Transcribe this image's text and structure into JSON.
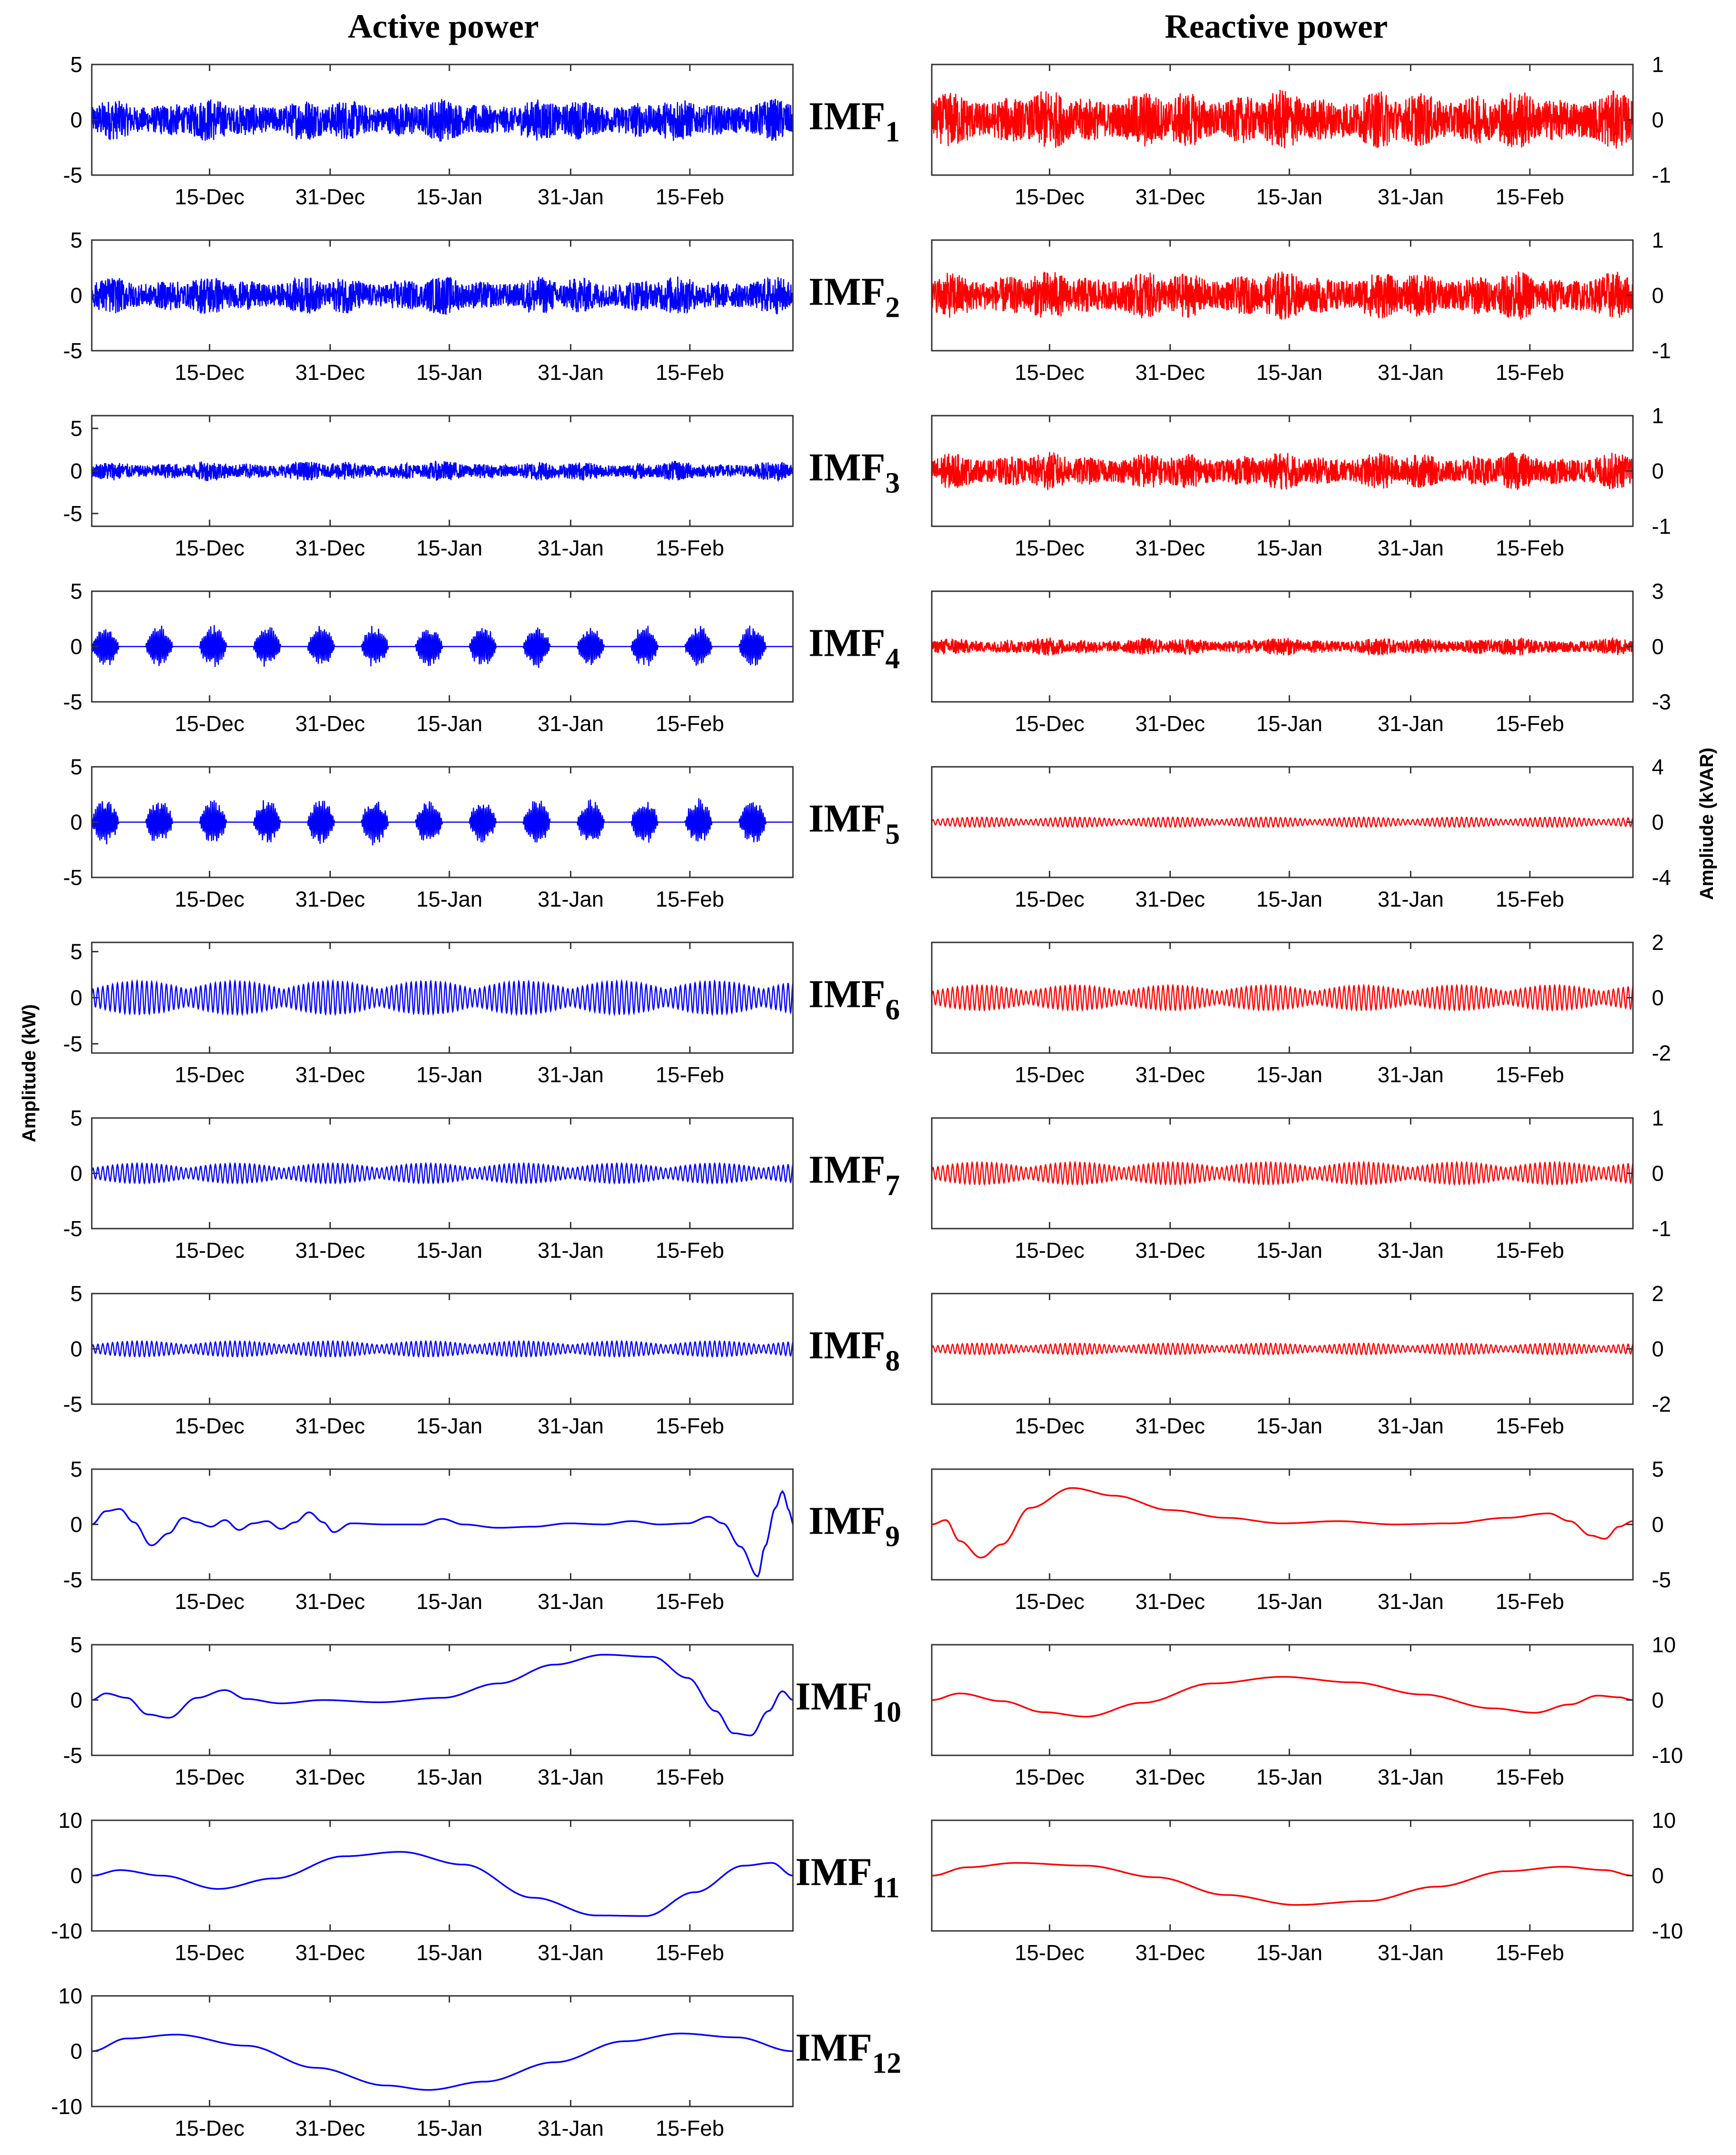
{
  "titles": {
    "left": "Active power",
    "right": "Reactive power"
  },
  "axis_labels": {
    "left": "Amplitude (kW)",
    "right": "Ampliude (kVAR)"
  },
  "colors": {
    "active": "#0000ff",
    "reactive": "#ff0000"
  },
  "chart_data": [
    {
      "type": "line",
      "panel": "IMF1",
      "column": "left",
      "title": "Active power",
      "series_name": "Active power",
      "xlabel": "",
      "ylabel": "Amplitude (kW)",
      "categories": [
        "15-Dec",
        "31-Dec",
        "15-Jan",
        "31-Jan",
        "15-Feb"
      ],
      "yticks": [
        "5",
        "0",
        "-5"
      ],
      "ylim": [
        -5,
        5
      ],
      "x_range": [
        "Dec 1",
        "Mar 2"
      ],
      "waveform": {
        "kind": "noise",
        "amplitude": 2.0
      }
    },
    {
      "type": "line",
      "panel": "IMF1",
      "column": "right",
      "title": "Reactive power",
      "series_name": "Reactive power",
      "xlabel": "",
      "ylabel": "Ampliude (kVAR)",
      "categories": [
        "15-Dec",
        "31-Dec",
        "15-Jan",
        "31-Jan",
        "15-Feb"
      ],
      "yticks": [
        "1",
        "0",
        "-1"
      ],
      "ylim": [
        -1,
        1
      ],
      "x_range": [
        "Dec 1",
        "Mar 2"
      ],
      "waveform": {
        "kind": "noise",
        "amplitude": 0.55
      }
    },
    {
      "type": "line",
      "panel": "IMF2",
      "column": "left",
      "series_name": "Active power",
      "categories": [
        "15-Dec",
        "31-Dec",
        "15-Jan",
        "31-Jan",
        "15-Feb"
      ],
      "yticks": [
        "5",
        "0",
        "-5"
      ],
      "ylim": [
        -5,
        5
      ],
      "waveform": {
        "kind": "noise",
        "amplitude": 1.8
      }
    },
    {
      "type": "line",
      "panel": "IMF2",
      "column": "right",
      "series_name": "Reactive power",
      "categories": [
        "15-Dec",
        "31-Dec",
        "15-Jan",
        "31-Jan",
        "15-Feb"
      ],
      "yticks": [
        "1",
        "0",
        "-1"
      ],
      "ylim": [
        -1,
        1
      ],
      "waveform": {
        "kind": "noise",
        "amplitude": 0.45
      }
    },
    {
      "type": "line",
      "panel": "IMF3",
      "column": "left",
      "series_name": "Active power",
      "categories": [
        "15-Dec",
        "31-Dec",
        "15-Jan",
        "31-Jan",
        "15-Feb"
      ],
      "yticks": [
        "5",
        "0",
        "-5"
      ],
      "ylim": [
        -6.5,
        6.5
      ],
      "waveform": {
        "kind": "noise",
        "amplitude": 1.2
      }
    },
    {
      "type": "line",
      "panel": "IMF3",
      "column": "right",
      "series_name": "Reactive power",
      "categories": [
        "15-Dec",
        "31-Dec",
        "15-Jan",
        "31-Jan",
        "15-Feb"
      ],
      "yticks": [
        "1",
        "0",
        "-1"
      ],
      "ylim": [
        -1,
        1
      ],
      "waveform": {
        "kind": "noise",
        "amplitude": 0.35
      }
    },
    {
      "type": "line",
      "panel": "IMF4",
      "column": "left",
      "series_name": "Active power",
      "categories": [
        "15-Dec",
        "31-Dec",
        "15-Jan",
        "31-Jan",
        "15-Feb"
      ],
      "yticks": [
        "5",
        "0",
        "-5"
      ],
      "ylim": [
        -5,
        5
      ],
      "waveform": {
        "kind": "bursts",
        "amplitude": 2.0
      }
    },
    {
      "type": "line",
      "panel": "IMF4",
      "column": "right",
      "series_name": "Reactive power",
      "categories": [
        "15-Dec",
        "31-Dec",
        "15-Jan",
        "31-Jan",
        "15-Feb"
      ],
      "yticks": [
        "3",
        "0",
        "-3"
      ],
      "ylim": [
        -3,
        3
      ],
      "waveform": {
        "kind": "noise",
        "amplitude": 0.5
      }
    },
    {
      "type": "line",
      "panel": "IMF5",
      "column": "left",
      "series_name": "Active power",
      "categories": [
        "15-Dec",
        "31-Dec",
        "15-Jan",
        "31-Jan",
        "15-Feb"
      ],
      "yticks": [
        "5",
        "0",
        "-5"
      ],
      "ylim": [
        -5,
        5
      ],
      "waveform": {
        "kind": "bursts",
        "amplitude": 2.2
      }
    },
    {
      "type": "line",
      "panel": "IMF5",
      "column": "right",
      "series_name": "Reactive power",
      "categories": [
        "15-Dec",
        "31-Dec",
        "15-Jan",
        "31-Jan",
        "15-Feb"
      ],
      "yticks": [
        "4",
        "0",
        "-4"
      ],
      "ylim": [
        -4,
        4
      ],
      "waveform": {
        "kind": "osc",
        "amplitude": 0.35
      }
    },
    {
      "type": "line",
      "panel": "IMF6",
      "column": "left",
      "series_name": "Active power",
      "categories": [
        "15-Dec",
        "31-Dec",
        "15-Jan",
        "31-Jan",
        "15-Feb"
      ],
      "yticks": [
        "5",
        "0",
        "-5"
      ],
      "ylim": [
        -6,
        6
      ],
      "waveform": {
        "kind": "osc",
        "amplitude": 1.8
      }
    },
    {
      "type": "line",
      "panel": "IMF6",
      "column": "right",
      "series_name": "Reactive power",
      "categories": [
        "15-Dec",
        "31-Dec",
        "15-Jan",
        "31-Jan",
        "15-Feb"
      ],
      "yticks": [
        "2",
        "0",
        "-2"
      ],
      "ylim": [
        -2,
        2
      ],
      "waveform": {
        "kind": "osc",
        "amplitude": 0.45
      }
    },
    {
      "type": "line",
      "panel": "IMF7",
      "column": "left",
      "series_name": "Active power",
      "categories": [
        "15-Dec",
        "31-Dec",
        "15-Jan",
        "31-Jan",
        "15-Feb"
      ],
      "yticks": [
        "5",
        "0",
        "-5"
      ],
      "ylim": [
        -5,
        5
      ],
      "waveform": {
        "kind": "osc",
        "amplitude": 0.9
      }
    },
    {
      "type": "line",
      "panel": "IMF7",
      "column": "right",
      "series_name": "Reactive power",
      "categories": [
        "15-Dec",
        "31-Dec",
        "15-Jan",
        "31-Jan",
        "15-Feb"
      ],
      "yticks": [
        "1",
        "0",
        "-1"
      ],
      "ylim": [
        -1,
        1
      ],
      "waveform": {
        "kind": "osc",
        "amplitude": 0.2
      }
    },
    {
      "type": "line",
      "panel": "IMF8",
      "column": "left",
      "series_name": "Active power",
      "categories": [
        "15-Dec",
        "31-Dec",
        "15-Jan",
        "31-Jan",
        "15-Feb"
      ],
      "yticks": [
        "5",
        "0",
        "-5"
      ],
      "ylim": [
        -5,
        5
      ],
      "waveform": {
        "kind": "osc",
        "amplitude": 0.7
      }
    },
    {
      "type": "line",
      "panel": "IMF8",
      "column": "right",
      "series_name": "Reactive power",
      "categories": [
        "15-Dec",
        "31-Dec",
        "15-Jan",
        "31-Jan",
        "15-Feb"
      ],
      "yticks": [
        "2",
        "0",
        "-2"
      ],
      "ylim": [
        -2,
        2
      ],
      "waveform": {
        "kind": "osc",
        "amplitude": 0.2
      }
    },
    {
      "type": "line",
      "panel": "IMF9",
      "column": "left",
      "series_name": "Active power",
      "categories": [
        "15-Dec",
        "31-Dec",
        "15-Jan",
        "31-Jan",
        "15-Feb"
      ],
      "yticks": [
        "5",
        "0",
        "-5"
      ],
      "ylim": [
        -5,
        5
      ],
      "waveform": {
        "kind": "curve",
        "points": [
          [
            0,
            0
          ],
          [
            0.02,
            1.2
          ],
          [
            0.04,
            1.4
          ],
          [
            0.06,
            0.2
          ],
          [
            0.085,
            -1.9
          ],
          [
            0.11,
            -0.8
          ],
          [
            0.13,
            0.6
          ],
          [
            0.15,
            0.2
          ],
          [
            0.17,
            -0.2
          ],
          [
            0.19,
            0.4
          ],
          [
            0.21,
            -0.5
          ],
          [
            0.23,
            0.1
          ],
          [
            0.25,
            0.3
          ],
          [
            0.27,
            -0.4
          ],
          [
            0.29,
            0.2
          ],
          [
            0.31,
            1.1
          ],
          [
            0.33,
            0.2
          ],
          [
            0.345,
            -0.7
          ],
          [
            0.37,
            0.1
          ],
          [
            0.42,
            0
          ],
          [
            0.47,
            0
          ],
          [
            0.5,
            0.5
          ],
          [
            0.53,
            0
          ],
          [
            0.58,
            -0.3
          ],
          [
            0.63,
            -0.2
          ],
          [
            0.68,
            0.1
          ],
          [
            0.73,
            0
          ],
          [
            0.77,
            0.3
          ],
          [
            0.81,
            0
          ],
          [
            0.85,
            0.1
          ],
          [
            0.88,
            0.7
          ],
          [
            0.9,
            0.1
          ],
          [
            0.925,
            -2
          ],
          [
            0.95,
            -4.7
          ],
          [
            0.96,
            -2
          ],
          [
            0.975,
            1.5
          ],
          [
            0.985,
            3
          ],
          [
            0.995,
            1.2
          ],
          [
            1,
            0
          ]
        ]
      }
    },
    {
      "type": "line",
      "panel": "IMF9",
      "column": "right",
      "series_name": "Reactive power",
      "categories": [
        "15-Dec",
        "31-Dec",
        "15-Jan",
        "31-Jan",
        "15-Feb"
      ],
      "yticks": [
        "5",
        "0",
        "-5"
      ],
      "ylim": [
        -5,
        5
      ],
      "waveform": {
        "kind": "curve",
        "points": [
          [
            0,
            0
          ],
          [
            0.02,
            0.4
          ],
          [
            0.04,
            -1.5
          ],
          [
            0.07,
            -3
          ],
          [
            0.1,
            -1.8
          ],
          [
            0.14,
            1.5
          ],
          [
            0.2,
            3.3
          ],
          [
            0.26,
            2.6
          ],
          [
            0.34,
            1.3
          ],
          [
            0.42,
            0.6
          ],
          [
            0.5,
            0.1
          ],
          [
            0.58,
            0.3
          ],
          [
            0.66,
            0
          ],
          [
            0.74,
            0.1
          ],
          [
            0.82,
            0.6
          ],
          [
            0.88,
            1
          ],
          [
            0.91,
            0.3
          ],
          [
            0.94,
            -1
          ],
          [
            0.96,
            -1.3
          ],
          [
            0.98,
            -0.2
          ],
          [
            1,
            0.3
          ]
        ]
      }
    },
    {
      "type": "line",
      "panel": "IMF10",
      "column": "left",
      "series_name": "Active power",
      "categories": [
        "15-Dec",
        "31-Dec",
        "15-Jan",
        "31-Jan",
        "15-Feb"
      ],
      "yticks": [
        "5",
        "0",
        "-5"
      ],
      "ylim": [
        -5,
        5
      ],
      "waveform": {
        "kind": "curve",
        "points": [
          [
            0,
            0
          ],
          [
            0.02,
            0.6
          ],
          [
            0.05,
            0.2
          ],
          [
            0.08,
            -1.3
          ],
          [
            0.11,
            -1.6
          ],
          [
            0.15,
            0.2
          ],
          [
            0.19,
            0.9
          ],
          [
            0.22,
            0.1
          ],
          [
            0.27,
            -0.3
          ],
          [
            0.33,
            0
          ],
          [
            0.41,
            -0.2
          ],
          [
            0.5,
            0.2
          ],
          [
            0.58,
            1.5
          ],
          [
            0.66,
            3.2
          ],
          [
            0.73,
            4.1
          ],
          [
            0.8,
            3.9
          ],
          [
            0.85,
            2
          ],
          [
            0.89,
            -1
          ],
          [
            0.915,
            -3
          ],
          [
            0.94,
            -3.2
          ],
          [
            0.965,
            -1
          ],
          [
            0.985,
            0.8
          ],
          [
            1,
            0
          ]
        ]
      }
    },
    {
      "type": "line",
      "panel": "IMF10",
      "column": "right",
      "series_name": "Reactive power",
      "categories": [
        "15-Dec",
        "31-Dec",
        "15-Jan",
        "31-Jan",
        "15-Feb"
      ],
      "yticks": [
        "10",
        "0",
        "-10"
      ],
      "ylim": [
        -10,
        10
      ],
      "waveform": {
        "kind": "curve",
        "points": [
          [
            0,
            0
          ],
          [
            0.04,
            1.2
          ],
          [
            0.1,
            -0.2
          ],
          [
            0.16,
            -2.2
          ],
          [
            0.22,
            -3
          ],
          [
            0.3,
            -0.5
          ],
          [
            0.4,
            3
          ],
          [
            0.5,
            4.2
          ],
          [
            0.6,
            3.2
          ],
          [
            0.7,
            1
          ],
          [
            0.8,
            -1.5
          ],
          [
            0.86,
            -2.3
          ],
          [
            0.91,
            -0.8
          ],
          [
            0.95,
            0.8
          ],
          [
            0.98,
            0.5
          ],
          [
            1,
            0
          ]
        ]
      }
    },
    {
      "type": "line",
      "panel": "IMF11",
      "column": "left",
      "series_name": "Active power",
      "categories": [
        "15-Dec",
        "31-Dec",
        "15-Jan",
        "31-Jan",
        "15-Feb"
      ],
      "yticks": [
        "10",
        "0",
        "-10"
      ],
      "ylim": [
        -10,
        10
      ],
      "waveform": {
        "kind": "curve",
        "points": [
          [
            0,
            0
          ],
          [
            0.04,
            1
          ],
          [
            0.1,
            0
          ],
          [
            0.18,
            -2.4
          ],
          [
            0.26,
            -0.5
          ],
          [
            0.36,
            3.5
          ],
          [
            0.44,
            4.3
          ],
          [
            0.53,
            2
          ],
          [
            0.63,
            -4
          ],
          [
            0.72,
            -7.2
          ],
          [
            0.79,
            -7.3
          ],
          [
            0.86,
            -3
          ],
          [
            0.93,
            1.8
          ],
          [
            0.97,
            2.3
          ],
          [
            1,
            0
          ]
        ]
      }
    },
    {
      "type": "line",
      "panel": "IMF11",
      "column": "right",
      "series_name": "Reactive power",
      "categories": [
        "15-Dec",
        "31-Dec",
        "15-Jan",
        "31-Jan",
        "15-Feb"
      ],
      "yticks": [
        "10",
        "0",
        "-10"
      ],
      "ylim": [
        -10,
        10
      ],
      "waveform": {
        "kind": "curve",
        "points": [
          [
            0,
            0
          ],
          [
            0.05,
            1.5
          ],
          [
            0.12,
            2.3
          ],
          [
            0.22,
            1.8
          ],
          [
            0.32,
            -0.3
          ],
          [
            0.42,
            -3.5
          ],
          [
            0.52,
            -5.3
          ],
          [
            0.62,
            -4.6
          ],
          [
            0.72,
            -2
          ],
          [
            0.82,
            0.8
          ],
          [
            0.9,
            1.6
          ],
          [
            0.96,
            1
          ],
          [
            1,
            0
          ]
        ]
      }
    },
    {
      "type": "line",
      "panel": "IMF12",
      "column": "left",
      "series_name": "Active power",
      "categories": [
        "15-Dec",
        "31-Dec",
        "15-Jan",
        "31-Jan",
        "15-Feb"
      ],
      "yticks": [
        "10",
        "0",
        "-10"
      ],
      "ylim": [
        -10,
        10
      ],
      "waveform": {
        "kind": "curve",
        "points": [
          [
            0,
            0
          ],
          [
            0.05,
            2.3
          ],
          [
            0.12,
            3
          ],
          [
            0.22,
            1
          ],
          [
            0.32,
            -3
          ],
          [
            0.42,
            -6.2
          ],
          [
            0.48,
            -7
          ],
          [
            0.56,
            -5.5
          ],
          [
            0.66,
            -2
          ],
          [
            0.76,
            1.8
          ],
          [
            0.84,
            3.2
          ],
          [
            0.92,
            2.5
          ],
          [
            1,
            0
          ]
        ]
      }
    }
  ],
  "imf_labels": [
    {
      "main": "IMF",
      "sub": "1"
    },
    {
      "main": "IMF",
      "sub": "2"
    },
    {
      "main": "IMF",
      "sub": "3"
    },
    {
      "main": "IMF",
      "sub": "4"
    },
    {
      "main": "IMF",
      "sub": "5"
    },
    {
      "main": "IMF",
      "sub": "6"
    },
    {
      "main": "IMF",
      "sub": "7"
    },
    {
      "main": "IMF",
      "sub": "8"
    },
    {
      "main": "IMF",
      "sub": "9"
    },
    {
      "main": "IMF",
      "sub": "10"
    },
    {
      "main": "IMF",
      "sub": "11"
    },
    {
      "main": "IMF",
      "sub": "12"
    }
  ]
}
